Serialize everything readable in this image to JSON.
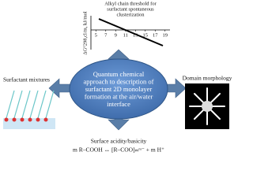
{
  "chart": {
    "title": [
      "Alkyl chain threshold for",
      "surfactant spontaneous",
      "clusterization"
    ],
    "y_label": "ΔG°298,cl/m, kJ/mol",
    "xlim": [
      4,
      20
    ],
    "xticks": [
      5,
      7,
      9,
      11,
      13,
      15,
      17,
      19
    ]
  },
  "center": {
    "lines": [
      "Quantum chemical",
      "approach to description of",
      "surfactant 2D monolayer",
      "formation at the air/water",
      "interface"
    ]
  },
  "left": {
    "label": "Surfactant mixtures"
  },
  "right": {
    "label": "Domain morphology"
  },
  "bottom": {
    "label": "Surface acidity/basicity",
    "formula": "m R–COOH ↔ [R–COO]ₘᵐ⁻ + m H⁺"
  }
}
